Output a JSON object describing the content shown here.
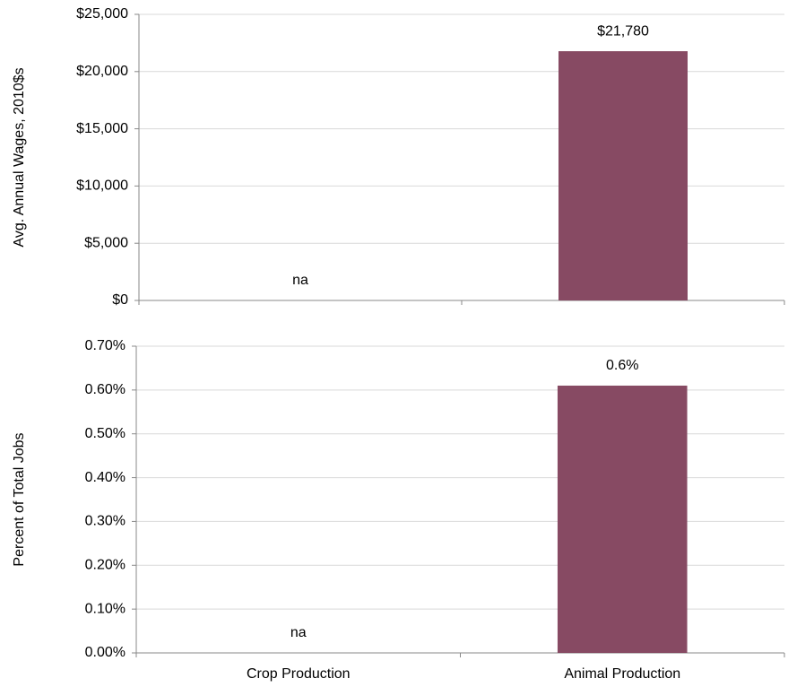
{
  "chart_data": [
    {
      "type": "bar",
      "y_label": "Avg. Annual Wages, 2010$s",
      "categories": [
        null,
        null
      ],
      "values": [
        null,
        21780
      ],
      "value_labels": [
        "na",
        "$21,780"
      ],
      "color": "#874a63",
      "ylim": [
        0,
        25000
      ],
      "yticks": [
        {
          "value": 0,
          "label": "$0"
        },
        {
          "value": 5000,
          "label": "$5,000"
        },
        {
          "value": 10000,
          "label": "$10,000"
        },
        {
          "value": 15000,
          "label": "$15,000"
        },
        {
          "value": 20000,
          "label": "$20,000"
        },
        {
          "value": 25000,
          "label": "$25,000"
        }
      ],
      "grid": true
    },
    {
      "type": "bar",
      "y_label": "Percent of Total Jobs",
      "categories": [
        "Crop Production",
        "Animal Production"
      ],
      "values": [
        null,
        0.61
      ],
      "value_labels": [
        "na",
        "0.6%"
      ],
      "color": "#874a63",
      "ylim": [
        0,
        0.7
      ],
      "yticks": [
        {
          "value": 0,
          "label": "0.00%"
        },
        {
          "value": 0.1,
          "label": "0.10%"
        },
        {
          "value": 0.2,
          "label": "0.20%"
        },
        {
          "value": 0.3,
          "label": "0.30%"
        },
        {
          "value": 0.4,
          "label": "0.40%"
        },
        {
          "value": 0.5,
          "label": "0.50%"
        },
        {
          "value": 0.6,
          "label": "0.60%"
        },
        {
          "value": 0.7,
          "label": "0.70%"
        }
      ],
      "grid": true
    }
  ]
}
